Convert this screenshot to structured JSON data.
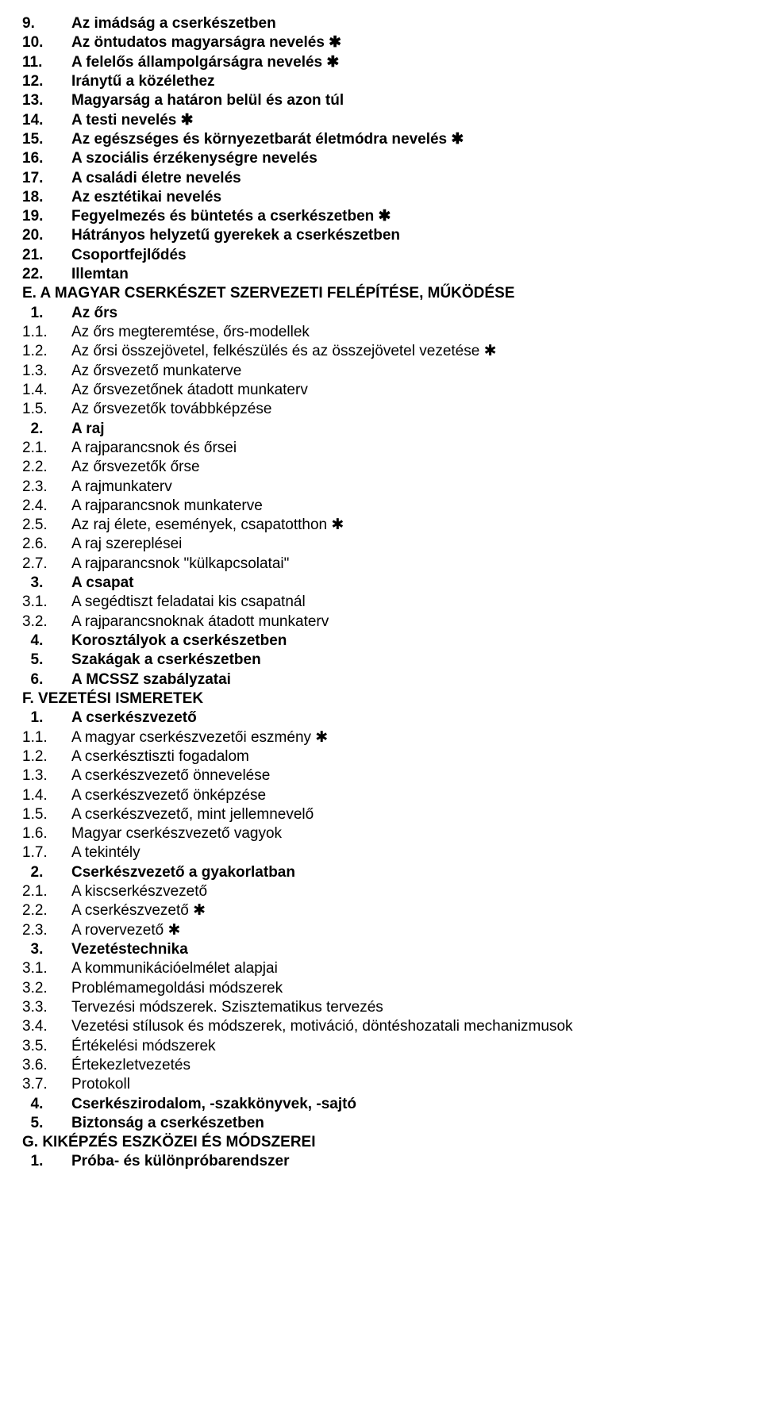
{
  "marker": "✱",
  "lines": [
    {
      "n": "9.",
      "t": "Az imádság a cserkészetben",
      "b": true,
      "m": false
    },
    {
      "n": "10.",
      "t": "Az öntudatos magyarságra nevelés",
      "b": true,
      "m": true
    },
    {
      "n": "11.",
      "t": "A felelős állampolgárságra nevelés",
      "b": true,
      "m": true
    },
    {
      "n": "12.",
      "t": "Iránytű a közélethez",
      "b": true,
      "m": false
    },
    {
      "n": "13.",
      "t": "Magyarság a határon belül és azon túl",
      "b": true,
      "m": false
    },
    {
      "n": "14.",
      "t": "A testi nevelés",
      "b": true,
      "m": true
    },
    {
      "n": "15.",
      "t": "Az egészséges és környezetbarát életmódra nevelés",
      "b": true,
      "m": true
    },
    {
      "n": "16.",
      "t": "A szociális érzékenységre nevelés",
      "b": true,
      "m": false
    },
    {
      "n": "17.",
      "t": "A családi életre nevelés",
      "b": true,
      "m": false
    },
    {
      "n": "18.",
      "t": "Az esztétikai nevelés",
      "b": true,
      "m": false
    },
    {
      "n": "19.",
      "t": "Fegyelmezés és büntetés a cserkészetben",
      "b": true,
      "m": true
    },
    {
      "n": "20.",
      "t": "Hátrányos helyzetű gyerekek a cserkészetben",
      "b": true,
      "m": false
    },
    {
      "n": "21.",
      "t": "Csoportfejlődés",
      "b": true,
      "m": false
    },
    {
      "n": "22.",
      "t": "Illemtan",
      "b": true,
      "m": false
    },
    {
      "section": "E. A MAGYAR CSERKÉSZET SZERVEZETI FELÉPÍTÉSE, MŰKÖDÉSE"
    },
    {
      "n": "  1.",
      "t": "Az őrs",
      "b": true,
      "m": false
    },
    {
      "n": "1.1.",
      "t": "Az őrs megteremtése, őrs-modellek",
      "b": false,
      "m": false
    },
    {
      "n": "1.2.",
      "t": "Az őrsi összejövetel, felkészülés és az összejövetel vezetése",
      "b": false,
      "m": true
    },
    {
      "n": "1.3.",
      "t": "Az őrsvezető munkaterve",
      "b": false,
      "m": false
    },
    {
      "n": "1.4.",
      "t": "Az őrsvezetőnek átadott munkaterv",
      "b": false,
      "m": false
    },
    {
      "n": "1.5.",
      "t": "Az őrsvezetők továbbképzése",
      "b": false,
      "m": false
    },
    {
      "n": "  2.",
      "t": "A raj",
      "b": true,
      "m": false
    },
    {
      "n": "2.1.",
      "t": "A rajparancsnok és őrsei",
      "b": false,
      "m": false
    },
    {
      "n": "2.2.",
      "t": "Az őrsvezetők őrse",
      "b": false,
      "m": false
    },
    {
      "n": "2.3.",
      "t": "A rajmunkaterv",
      "b": false,
      "m": false
    },
    {
      "n": "2.4.",
      "t": "A rajparancsnok munkaterve",
      "b": false,
      "m": false
    },
    {
      "n": "2.5.",
      "t": "Az raj élete, események, csapatotthon",
      "b": false,
      "m": true
    },
    {
      "n": "2.6.",
      "t": "A raj szereplései",
      "b": false,
      "m": false
    },
    {
      "n": "2.7.",
      "t": "A rajparancsnok \"külkapcsolatai\"",
      "b": false,
      "m": false
    },
    {
      "n": "  3.",
      "t": "A csapat",
      "b": true,
      "m": false
    },
    {
      "n": "3.1.",
      "t": "A segédtiszt feladatai kis csapatnál",
      "b": false,
      "m": false
    },
    {
      "n": "3.2.",
      "t": "A rajparancsnoknak átadott munkaterv",
      "b": false,
      "m": false
    },
    {
      "n": "  4.",
      "t": "Korosztályok a cserkészetben",
      "b": true,
      "m": false
    },
    {
      "n": "  5.",
      "t": "Szakágak a cserkészetben",
      "b": true,
      "m": false
    },
    {
      "n": "  6.",
      "t": "A MCSSZ szabályzatai",
      "b": true,
      "m": false
    },
    {
      "section": "F. VEZETÉSI ISMERETEK"
    },
    {
      "n": "  1.",
      "t": "A cserkészvezető",
      "b": true,
      "m": false
    },
    {
      "n": "1.1.",
      "t": "A magyar cserkészvezetői eszmény",
      "b": false,
      "m": true
    },
    {
      "n": "1.2.",
      "t": "A cserkésztiszti fogadalom",
      "b": false,
      "m": false
    },
    {
      "n": "1.3.",
      "t": "A cserkészvezető önnevelése",
      "b": false,
      "m": false
    },
    {
      "n": "1.4.",
      "t": "A cserkészvezető önképzése",
      "b": false,
      "m": false
    },
    {
      "n": "1.5.",
      "t": "A cserkészvezető, mint jellemnevelő",
      "b": false,
      "m": false
    },
    {
      "n": "1.6.",
      "t": "Magyar cserkészvezető vagyok",
      "b": false,
      "m": false
    },
    {
      "n": "1.7.",
      "t": "A tekintély",
      "b": false,
      "m": false
    },
    {
      "n": "  2.",
      "t": "Cserkészvezető a gyakorlatban",
      "b": true,
      "m": false
    },
    {
      "n": "2.1.",
      "t": "A kiscserkészvezető",
      "b": false,
      "m": false
    },
    {
      "n": "2.2.",
      "t": "A cserkészvezető",
      "b": false,
      "m": true
    },
    {
      "n": "2.3.",
      "t": "A rovervezető",
      "b": false,
      "m": true
    },
    {
      "n": "  3.",
      "t": "Vezetéstechnika",
      "b": true,
      "m": false
    },
    {
      "n": "3.1.",
      "t": "A kommunikációelmélet alapjai",
      "b": false,
      "m": false
    },
    {
      "n": "3.2.",
      "t": "Problémamegoldási módszerek",
      "b": false,
      "m": false
    },
    {
      "n": "3.3.",
      "t": "Tervezési módszerek. Szisztematikus tervezés",
      "b": false,
      "m": false
    },
    {
      "n": "3.4.",
      "t": "Vezetési stílusok és módszerek, motiváció, döntéshozatali mechanizmusok",
      "b": false,
      "m": false
    },
    {
      "n": "3.5.",
      "t": "Értékelési módszerek",
      "b": false,
      "m": false
    },
    {
      "n": "3.6.",
      "t": "Értekezletvezetés",
      "b": false,
      "m": false
    },
    {
      "n": "3.7.",
      "t": "Protokoll",
      "b": false,
      "m": false
    },
    {
      "n": "  4.",
      "t": "Cserkészirodalom, -szakkönyvek, -sajtó",
      "b": true,
      "m": false
    },
    {
      "n": "  5.",
      "t": "Biztonság a cserkészetben",
      "b": true,
      "m": false
    },
    {
      "section": "G. KIKÉPZÉS ESZKÖZEI ÉS MÓDSZEREI"
    },
    {
      "n": "  1.",
      "t": "Próba- és különpróbarendszer",
      "b": true,
      "m": false
    }
  ]
}
